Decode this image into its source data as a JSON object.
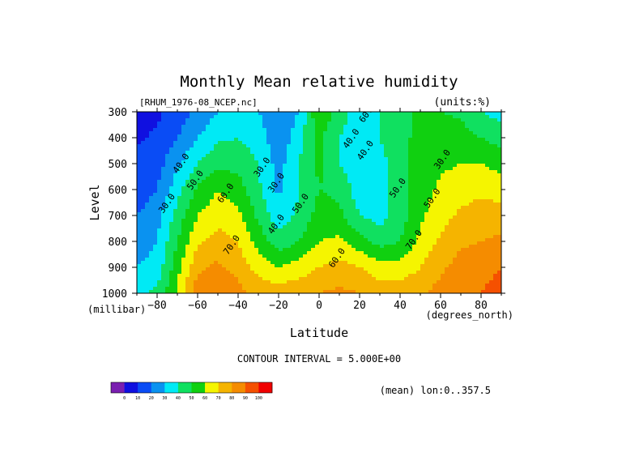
{
  "chart_data": {
    "type": "heatmap",
    "title": "Monthly Mean relative humidity",
    "file_label": "[RHUM_1976-08_NCEP.nc]",
    "units_label": "(units:%)",
    "ylabel": "Level",
    "yunit": "(millibar)",
    "xlabel": "Latitude",
    "xunit": "(degrees_north)",
    "xlim": [
      -90,
      90
    ],
    "ylim": [
      300,
      1000
    ],
    "y_reversed": true,
    "x_ticks": [
      -80,
      -60,
      -40,
      -20,
      0,
      20,
      40,
      60,
      80
    ],
    "y_ticks": [
      300,
      400,
      500,
      600,
      700,
      800,
      900,
      1000
    ],
    "contour_interval_label": "CONTOUR INTERVAL = 5.000E+00",
    "mean_label": "(mean) lon:0..357.5",
    "colorbar": {
      "ticks": [
        "0",
        "10",
        "20",
        "30",
        "40",
        "50",
        "60",
        "70",
        "80",
        "90",
        "100"
      ],
      "colors": [
        "#7a1fb0",
        "#1010e0",
        "#0a4cf5",
        "#0a92f0",
        "#00eaf5",
        "#10e060",
        "#10d010",
        "#f5f500",
        "#f5b400",
        "#f58c00",
        "#f55000",
        "#f00000"
      ]
    },
    "levels": [
      300,
      400,
      500,
      600,
      700,
      800,
      900,
      1000
    ],
    "latitudes": [
      -90,
      -80,
      -70,
      -60,
      -50,
      -40,
      -30,
      -20,
      -10,
      0,
      10,
      20,
      30,
      40,
      50,
      60,
      70,
      80,
      90
    ],
    "rh_rows": [
      [
        5,
        8,
        14,
        22,
        30,
        34,
        30,
        22,
        30,
        60,
        44,
        36,
        40,
        46,
        52,
        50,
        48,
        40,
        36
      ],
      [
        8,
        12,
        20,
        30,
        38,
        40,
        36,
        22,
        36,
        52,
        40,
        34,
        40,
        48,
        52,
        56,
        54,
        50,
        46
      ],
      [
        14,
        16,
        28,
        40,
        48,
        46,
        40,
        26,
        40,
        52,
        40,
        32,
        36,
        46,
        54,
        58,
        60,
        60,
        56
      ],
      [
        14,
        20,
        36,
        52,
        60,
        55,
        42,
        28,
        40,
        50,
        48,
        34,
        35,
        45,
        55,
        62,
        66,
        68,
        66
      ],
      [
        20,
        26,
        44,
        60,
        66,
        62,
        48,
        34,
        42,
        54,
        52,
        40,
        36,
        45,
        58,
        66,
        72,
        74,
        74
      ],
      [
        24,
        30,
        50,
        68,
        74,
        70,
        56,
        44,
        50,
        60,
        62,
        54,
        46,
        50,
        62,
        72,
        78,
        80,
        82
      ],
      [
        30,
        34,
        56,
        78,
        82,
        76,
        66,
        60,
        64,
        70,
        74,
        70,
        64,
        64,
        70,
        78,
        84,
        86,
        90
      ],
      [
        38,
        42,
        62,
        86,
        90,
        84,
        76,
        76,
        78,
        80,
        82,
        80,
        76,
        76,
        78,
        84,
        88,
        90,
        95
      ]
    ],
    "contour_labels": [
      "40.0",
      "30.0",
      "50.0",
      "60.0",
      "70.0",
      "60.0",
      "40.0",
      "30.0",
      "50.0",
      "40.0",
      "30.0",
      "50.0",
      "60.0",
      "70.0",
      "50.0",
      "40.0",
      "30.0"
    ]
  }
}
